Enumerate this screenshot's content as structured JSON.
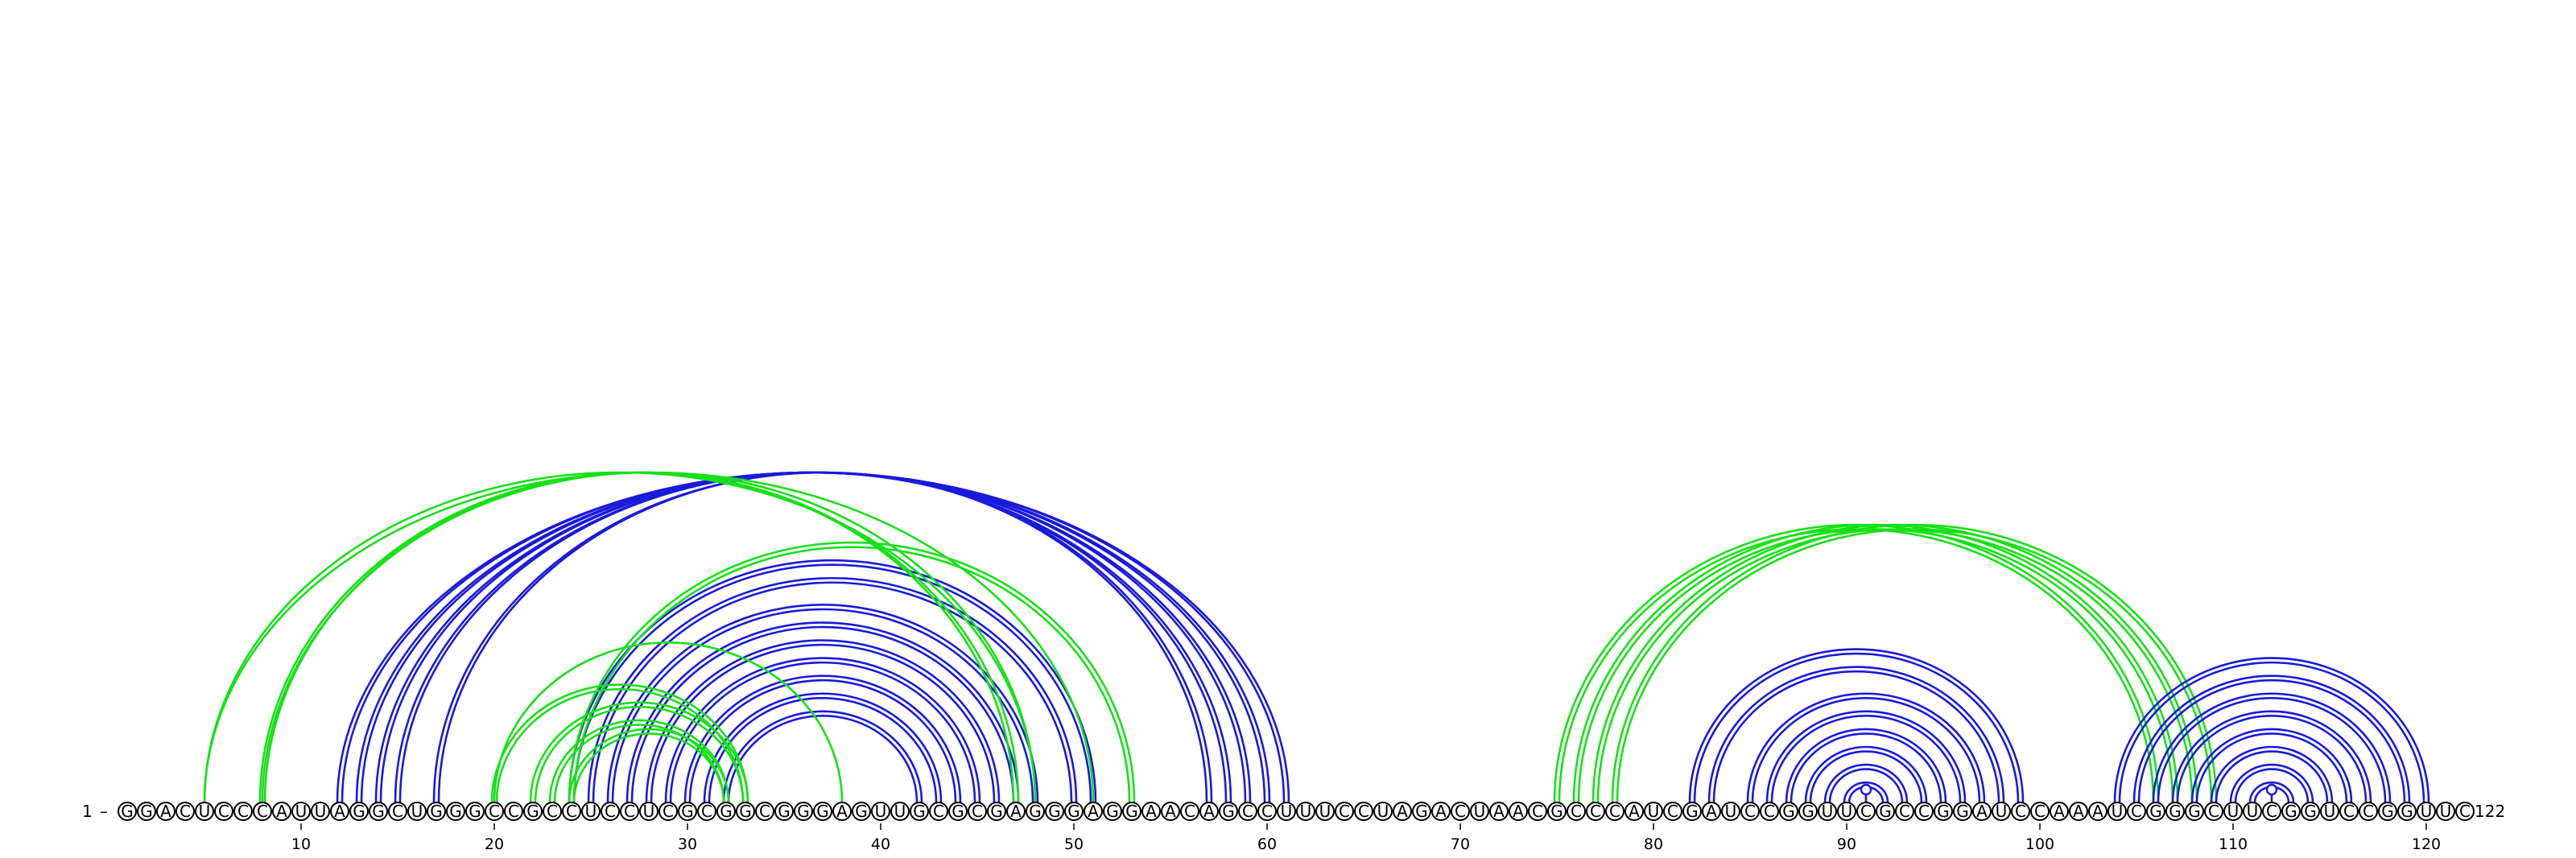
{
  "sequence": "GGACUCCCAUUAGGCUGGGCCGCCUCCUCGCGGCGGGAGUUGCGCGAGGGAGGAACAGCCUUUCCUAGACUAACGCCCAUCGAUCCGGUUCGCCGGAUCCAAAUCGGGCUUCGGUCCGGUUC",
  "start_label": "1",
  "end_label": "122",
  "tick_labels": [
    "10",
    "20",
    "30",
    "40",
    "50",
    "60",
    "70",
    "80",
    "90",
    "100",
    "110",
    "120"
  ],
  "colors": {
    "blue": "#1a1adb",
    "green": "#17e017"
  },
  "arc_sets": [
    {
      "color": "blue",
      "double": true,
      "pairs": [
        [
          12,
          61
        ],
        [
          13,
          60
        ],
        [
          14,
          59
        ],
        [
          15,
          58
        ],
        [
          17,
          57
        ]
      ]
    },
    {
      "color": "blue",
      "double": true,
      "pairs": [
        [
          24,
          51
        ],
        [
          25,
          50
        ],
        [
          26,
          48
        ],
        [
          27,
          47
        ],
        [
          28,
          46
        ],
        [
          29,
          45
        ],
        [
          30,
          44
        ],
        [
          31,
          43
        ],
        [
          32,
          42
        ]
      ]
    },
    {
      "color": "green",
      "double": false,
      "pairs": [
        [
          5,
          48
        ],
        [
          5,
          51
        ],
        [
          8,
          48
        ],
        [
          20,
          38
        ]
      ]
    },
    {
      "color": "green",
      "double": true,
      "pairs": [
        [
          8,
          47
        ],
        [
          20,
          33
        ],
        [
          22,
          33
        ],
        [
          23,
          32
        ],
        [
          24,
          32
        ],
        [
          24,
          53
        ]
      ]
    },
    {
      "color": "green",
      "double": true,
      "pairs": [
        [
          75,
          106
        ],
        [
          76,
          107
        ],
        [
          77,
          108
        ],
        [
          78,
          109
        ]
      ]
    },
    {
      "color": "blue",
      "double": true,
      "pairs": [
        [
          82,
          99
        ],
        [
          83,
          98
        ],
        [
          85,
          97
        ],
        [
          86,
          96
        ],
        [
          87,
          95
        ],
        [
          88,
          94
        ],
        [
          89,
          93
        ],
        [
          90,
          92
        ]
      ]
    },
    {
      "color": "blue",
      "double": true,
      "pairs": [
        [
          104,
          120
        ],
        [
          105,
          119
        ],
        [
          106,
          118
        ],
        [
          107,
          117
        ],
        [
          108,
          116
        ],
        [
          109,
          115
        ],
        [
          110,
          114
        ],
        [
          111,
          113
        ]
      ]
    },
    {
      "color": "blue",
      "double": false,
      "pairs": [
        [
          91,
          91
        ],
        [
          112,
          112
        ]
      ]
    }
  ]
}
